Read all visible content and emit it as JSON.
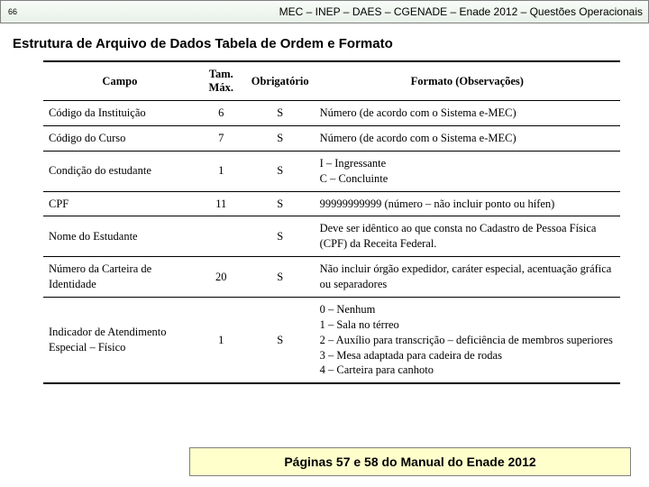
{
  "header": {
    "slide_number": "66",
    "breadcrumb": "MEC – INEP – DAES – CGENADE – Enade 2012 – Questões Operacionais"
  },
  "title": "Estrutura de Arquivo de Dados Tabela de Ordem e Formato",
  "table": {
    "columns": {
      "campo": "Campo",
      "tam": "Tam. Máx.",
      "obrig": "Obrigatório",
      "formato": "Formato (Observações)"
    },
    "rows": [
      {
        "campo": "Código da Instituição",
        "tam": "6",
        "obrig": "S",
        "formato": "Número (de acordo com o Sistema e-MEC)"
      },
      {
        "campo": "Código do Curso",
        "tam": "7",
        "obrig": "S",
        "formato": "Número (de acordo com o Sistema e-MEC)"
      },
      {
        "campo": "Condição do estudante",
        "tam": "1",
        "obrig": "S",
        "formato": "I – Ingressante\nC – Concluinte"
      },
      {
        "campo": "CPF",
        "tam": "11",
        "obrig": "S",
        "formato": "99999999999 (número – não incluir ponto ou hífen)"
      },
      {
        "campo": "Nome do Estudante",
        "tam": "",
        "obrig": "S",
        "formato": "Deve ser idêntico ao que consta no Cadastro de Pessoa Física (CPF) da Receita Federal."
      },
      {
        "campo": "Número da Carteira de Identidade",
        "tam": "20",
        "obrig": "S",
        "formato": "Não incluir órgão expedidor, caráter especial, acentuação gráfica ou separadores"
      },
      {
        "campo": "Indicador de Atendimento Especial – Físico",
        "tam": "1",
        "obrig": "S",
        "formato": "0 – Nenhum\n1 – Sala no térreo\n2 – Auxílio para transcrição – deficiência de membros superiores\n3 – Mesa adaptada para cadeira de rodas\n4 – Carteira para canhoto"
      }
    ]
  },
  "footer": "Páginas 57 e 58 do Manual do Enade 2012"
}
